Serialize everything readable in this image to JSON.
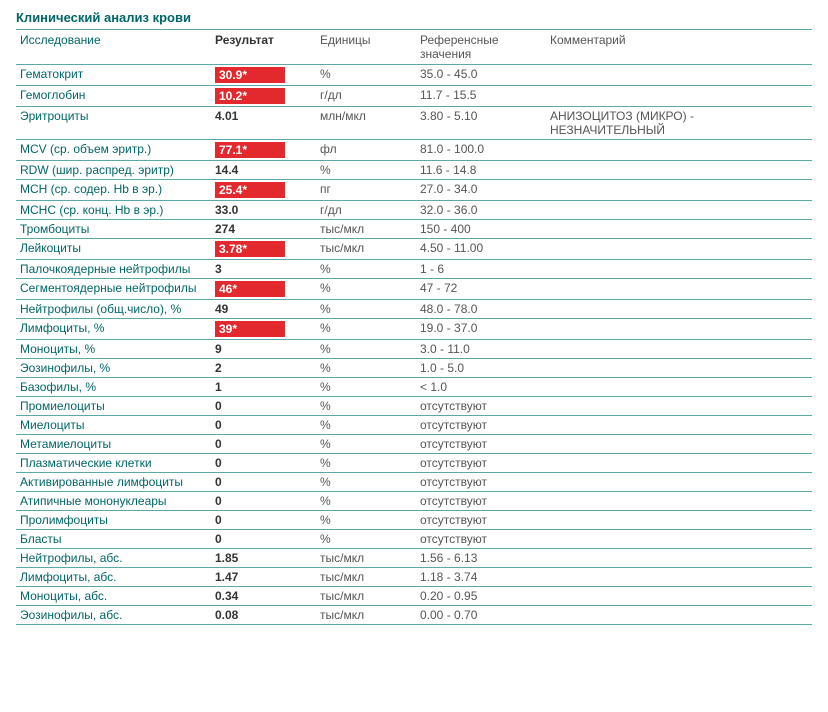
{
  "title": "Клинический анализ крови",
  "columns": {
    "test": "Исследование",
    "result": "Результат",
    "units": "Единицы",
    "ref": "Референсные значения",
    "comment": "Комментарий"
  },
  "colors": {
    "header_text": "#006666",
    "test_text": "#006666",
    "flag_bg": "#e3282e",
    "flag_text": "#ffffff",
    "border": "#5ba8a8",
    "background": "#ffffff"
  },
  "rows": [
    {
      "test": "Гематокрит",
      "result": "30.9*",
      "flag": true,
      "units": "%",
      "ref": "35.0 - 45.0",
      "comment": ""
    },
    {
      "test": "Гемоглобин",
      "result": "10.2*",
      "flag": true,
      "units": "г/дл",
      "ref": "11.7 - 15.5",
      "comment": ""
    },
    {
      "test": "Эритроциты",
      "result": "4.01",
      "flag": false,
      "units": "млн/мкл",
      "ref": "3.80 - 5.10",
      "comment": "АНИЗОЦИТОЗ (МИКРО) - НЕЗНАЧИТЕЛЬНЫЙ"
    },
    {
      "test": "MCV (ср. объем эритр.)",
      "result": "77.1*",
      "flag": true,
      "units": "фл",
      "ref": "81.0 - 100.0",
      "comment": ""
    },
    {
      "test": "RDW (шир. распред. эритр)",
      "result": "14.4",
      "flag": false,
      "units": "%",
      "ref": "11.6 - 14.8",
      "comment": ""
    },
    {
      "test": "MCH (ср. содер. Hb в эр.)",
      "result": "25.4*",
      "flag": true,
      "units": "пг",
      "ref": "27.0 - 34.0",
      "comment": ""
    },
    {
      "test": "MCHC (ср. конц. Hb в эр.)",
      "result": "33.0",
      "flag": false,
      "units": "г/дл",
      "ref": "32.0 - 36.0",
      "comment": ""
    },
    {
      "test": "Тромбоциты",
      "result": "274",
      "flag": false,
      "units": "тыс/мкл",
      "ref": "150 - 400",
      "comment": ""
    },
    {
      "test": "Лейкоциты",
      "result": "3.78*",
      "flag": true,
      "units": "тыс/мкл",
      "ref": "4.50 - 11.00",
      "comment": ""
    },
    {
      "test": "Палочкоядерные нейтрофилы",
      "result": "3",
      "flag": false,
      "units": "%",
      "ref": "1 - 6",
      "comment": ""
    },
    {
      "test": "Сегментоядерные нейтрофилы",
      "result": "46*",
      "flag": true,
      "units": "%",
      "ref": "47 - 72",
      "comment": ""
    },
    {
      "test": "Нейтрофилы (общ.число), %",
      "result": "49",
      "flag": false,
      "units": "%",
      "ref": "48.0 - 78.0",
      "comment": ""
    },
    {
      "test": "Лимфоциты, %",
      "result": "39*",
      "flag": true,
      "units": "%",
      "ref": "19.0 - 37.0",
      "comment": ""
    },
    {
      "test": "Моноциты, %",
      "result": "9",
      "flag": false,
      "units": "%",
      "ref": "3.0 - 11.0",
      "comment": ""
    },
    {
      "test": "Эозинофилы, %",
      "result": "2",
      "flag": false,
      "units": "%",
      "ref": "1.0 - 5.0",
      "comment": ""
    },
    {
      "test": "Базофилы, %",
      "result": "1",
      "flag": false,
      "units": "%",
      "ref": "< 1.0",
      "comment": ""
    },
    {
      "test": "Промиелоциты",
      "result": "0",
      "flag": false,
      "units": "%",
      "ref": "отсутствуют",
      "comment": ""
    },
    {
      "test": "Миелоциты",
      "result": "0",
      "flag": false,
      "units": "%",
      "ref": "отсутствуют",
      "comment": ""
    },
    {
      "test": "Метамиелоциты",
      "result": "0",
      "flag": false,
      "units": "%",
      "ref": "отсутствуют",
      "comment": ""
    },
    {
      "test": "Плазматические клетки",
      "result": "0",
      "flag": false,
      "units": "%",
      "ref": "отсутствуют",
      "comment": ""
    },
    {
      "test": "Активированные лимфоциты",
      "result": "0",
      "flag": false,
      "units": "%",
      "ref": "отсутствуют",
      "comment": ""
    },
    {
      "test": "Атипичные мононуклеары",
      "result": "0",
      "flag": false,
      "units": "%",
      "ref": "отсутствуют",
      "comment": ""
    },
    {
      "test": "Пролимфоциты",
      "result": "0",
      "flag": false,
      "units": "%",
      "ref": "отсутствуют",
      "comment": ""
    },
    {
      "test": "Бласты",
      "result": "0",
      "flag": false,
      "units": "%",
      "ref": "отсутствуют",
      "comment": ""
    },
    {
      "test": "Нейтрофилы, абс.",
      "result": "1.85",
      "flag": false,
      "units": "тыс/мкл",
      "ref": "1.56 - 6.13",
      "comment": ""
    },
    {
      "test": "Лимфоциты, абс.",
      "result": "1.47",
      "flag": false,
      "units": "тыс/мкл",
      "ref": "1.18 - 3.74",
      "comment": ""
    },
    {
      "test": "Моноциты, абс.",
      "result": "0.34",
      "flag": false,
      "units": "тыс/мкл",
      "ref": "0.20 - 0.95",
      "comment": ""
    },
    {
      "test": "Эозинофилы, абс.",
      "result": "0.08",
      "flag": false,
      "units": "тыс/мкл",
      "ref": "0.00 - 0.70",
      "comment": ""
    }
  ]
}
